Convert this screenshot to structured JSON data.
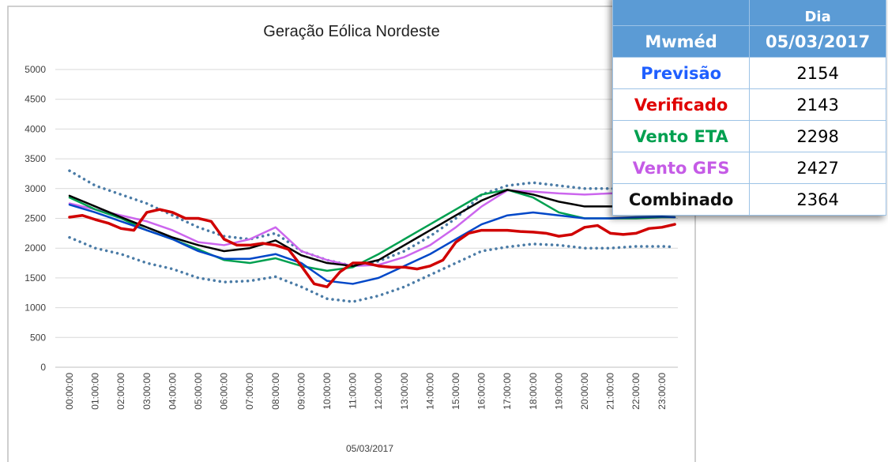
{
  "chart_data": {
    "type": "line",
    "title": "Geração Eólica Nordeste",
    "x_label": "05/03/2017",
    "categories": [
      "00:00:00",
      null,
      "01:00:00",
      null,
      "02:00:00",
      null,
      "03:00:00",
      null,
      "04:00:00",
      null,
      "05:00:00",
      null,
      "06:00:00",
      null,
      "07:00:00",
      null,
      "08:00:00",
      null,
      "09:00:00",
      null,
      "10:00:00",
      null,
      "11:00:00",
      null,
      "12:00:00",
      null,
      "13:00:00",
      null,
      "14:00:00",
      null,
      "15:00:00",
      null,
      "16:00:00",
      null,
      "17:00:00",
      null,
      "18:00:00",
      null,
      "19:00:00",
      null,
      "20:00:00",
      null,
      "21:00:00",
      null,
      "22:00:00",
      null,
      "23:00:00",
      null
    ],
    "ylim": [
      0,
      5000
    ],
    "yticks": [
      0,
      500,
      1000,
      1500,
      2000,
      2500,
      3000,
      3500,
      4000,
      4500,
      5000
    ],
    "grid": true,
    "series": [
      {
        "color": "#4a7ba6",
        "dash": "dotted",
        "values": [
          3300,
          3175,
          3050,
          2975,
          2900,
          2825,
          2750,
          2650,
          2550,
          2450,
          2350,
          2275,
          2200,
          2175,
          2150,
          2200,
          2250,
          2100,
          1950,
          1875,
          1800,
          1750,
          1700,
          1740,
          1780,
          1865,
          1950,
          2075,
          2200,
          2350,
          2500,
          2700,
          2900,
          2975,
          3050,
          3075,
          3100,
          3075,
          3050,
          3025,
          3000,
          3000,
          3000,
          3000,
          3000,
          3000,
          3000,
          3000
        ]
      },
      {
        "color": "#4a7ba6",
        "dash": "dotted",
        "values": [
          2180,
          2090,
          2000,
          1950,
          1900,
          1825,
          1750,
          1700,
          1650,
          1575,
          1500,
          1465,
          1430,
          1440,
          1450,
          1485,
          1520,
          1435,
          1350,
          1250,
          1150,
          1125,
          1100,
          1150,
          1200,
          1275,
          1350,
          1450,
          1550,
          1650,
          1750,
          1850,
          1950,
          1985,
          2020,
          2045,
          2070,
          2060,
          2050,
          2025,
          2000,
          2000,
          2000,
          2015,
          2030,
          2030,
          2030,
          2020
        ]
      },
      {
        "color": "#cc66ee",
        "values": [
          2750,
          2700,
          2650,
          2600,
          2550,
          2500,
          2450,
          2375,
          2300,
          2200,
          2100,
          2075,
          2050,
          2100,
          2150,
          2250,
          2350,
          2150,
          1950,
          1875,
          1800,
          1750,
          1700,
          1710,
          1720,
          1785,
          1850,
          1950,
          2050,
          2200,
          2350,
          2525,
          2700,
          2835,
          2970,
          2960,
          2950,
          2935,
          2920,
          2910,
          2900,
          2910,
          2920,
          2925,
          2930,
          2940,
          2950,
          2950
        ]
      },
      {
        "color": "#00a050",
        "values": [
          2850,
          2750,
          2650,
          2575,
          2500,
          2400,
          2300,
          2225,
          2150,
          2065,
          1980,
          1890,
          1800,
          1775,
          1750,
          1790,
          1830,
          1765,
          1700,
          1660,
          1620,
          1650,
          1680,
          1790,
          1900,
          2025,
          2150,
          2275,
          2400,
          2525,
          2650,
          2775,
          2900,
          2940,
          2980,
          2915,
          2850,
          2725,
          2600,
          2550,
          2500,
          2500,
          2500,
          2500,
          2500,
          2510,
          2520,
          2520
        ]
      },
      {
        "color": "#0047c8",
        "values": [
          2730,
          2665,
          2600,
          2525,
          2450,
          2375,
          2300,
          2225,
          2150,
          2050,
          1950,
          1885,
          1820,
          1820,
          1820,
          1860,
          1900,
          1825,
          1750,
          1600,
          1450,
          1425,
          1400,
          1450,
          1500,
          1600,
          1700,
          1800,
          1900,
          2025,
          2150,
          2275,
          2400,
          2475,
          2550,
          2575,
          2600,
          2575,
          2550,
          2525,
          2500,
          2500,
          2500,
          2510,
          2520,
          2525,
          2530,
          2520
        ]
      },
      {
        "color": "#000000",
        "values": [
          2880,
          2790,
          2700,
          2610,
          2520,
          2435,
          2350,
          2265,
          2180,
          2115,
          2050,
          2000,
          1950,
          1975,
          2000,
          2065,
          2130,
          2005,
          1880,
          1815,
          1750,
          1725,
          1700,
          1750,
          1800,
          1925,
          2050,
          2175,
          2300,
          2425,
          2550,
          2675,
          2800,
          2890,
          2980,
          2940,
          2900,
          2840,
          2780,
          2740,
          2700,
          2700,
          2700,
          2700,
          2700,
          2705,
          2710,
          2710
        ]
      },
      {
        "color": "#d00000",
        "values": [
          2520,
          2550,
          2480,
          2420,
          2330,
          2300,
          2600,
          2650,
          2600,
          2500,
          2500,
          2450,
          2150,
          2050,
          2050,
          2080,
          2050,
          1980,
          1700,
          1400,
          1350,
          1600,
          1750,
          1750,
          1700,
          1680,
          1680,
          1650,
          1700,
          1800,
          2100,
          2250,
          2300,
          2300,
          2300,
          2280,
          2270,
          2250,
          2200,
          2230,
          2350,
          2380,
          2250,
          2230,
          2250,
          2330,
          2350,
          2400
        ]
      }
    ]
  },
  "table": {
    "day_label": "Dia",
    "header": [
      "Mwméd",
      "05/03/2017"
    ],
    "rows": [
      [
        "Previsão",
        2154
      ],
      [
        "Verificado",
        2143
      ],
      [
        "Vento ETA",
        2298
      ],
      [
        "Vento GFS",
        2427
      ],
      [
        "Combinado",
        2364
      ]
    ]
  }
}
